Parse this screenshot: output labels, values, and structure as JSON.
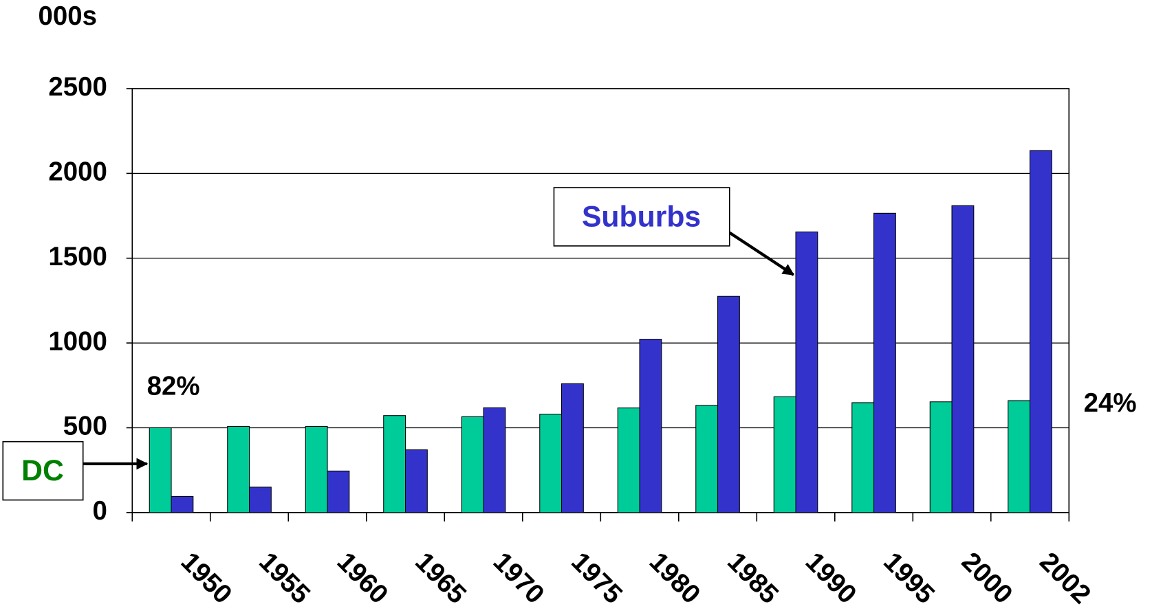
{
  "chart_data": {
    "type": "bar",
    "title": "000s",
    "categories": [
      "1950",
      "1955",
      "1960",
      "1965",
      "1970",
      "1975",
      "1980",
      "1985",
      "1990",
      "1995",
      "2000",
      "2002"
    ],
    "series": [
      {
        "name": "DC",
        "color": "#00cc99",
        "values": [
          500,
          508,
          508,
          572,
          565,
          580,
          617,
          632,
          683,
          648,
          653,
          660
        ]
      },
      {
        "name": "Suburbs",
        "color": "#3333cc",
        "values": [
          95,
          150,
          245,
          370,
          618,
          760,
          1022,
          1275,
          1655,
          1765,
          1810,
          2135
        ]
      }
    ],
    "annotations": [
      "82%",
      "24%"
    ],
    "ylim": [
      0,
      2500
    ],
    "yticks": [
      0,
      500,
      1000,
      1500,
      2000,
      2500
    ],
    "grid": true
  }
}
